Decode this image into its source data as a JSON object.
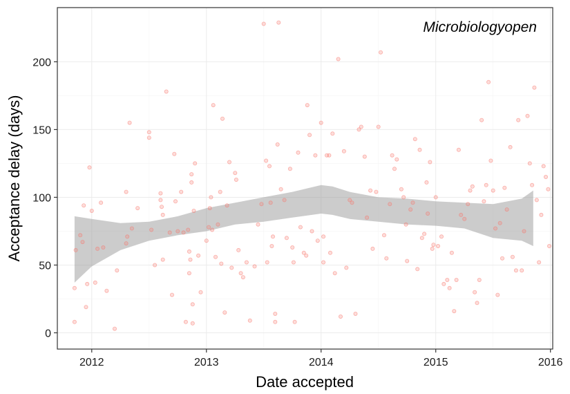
{
  "chart_data": {
    "type": "scatter",
    "title": "",
    "panel_label": "Microbiologyopen",
    "xlabel": "Date accepted",
    "ylabel": "Acceptance delay (days)",
    "x_units": "year",
    "xlim": [
      2011.7,
      2016.02
    ],
    "ylim": [
      -12,
      240
    ],
    "x_ticks": [
      2012,
      2013,
      2014,
      2015,
      2016
    ],
    "x_tick_labels": [
      "2012",
      "2013",
      "2014",
      "2015",
      "2016"
    ],
    "y_ticks": [
      0,
      50,
      100,
      150,
      200
    ],
    "y_tick_labels": [
      "0",
      "50",
      "100",
      "150",
      "200"
    ],
    "grid": true,
    "legend": "none",
    "point_color": "#f8766d",
    "ribbon_color": "#999999",
    "series": [
      {
        "kind": "points",
        "points": [
          [
            2011.85,
            8
          ],
          [
            2011.85,
            33
          ],
          [
            2011.86,
            61
          ],
          [
            2011.9,
            72
          ],
          [
            2011.92,
            67
          ],
          [
            2011.93,
            94
          ],
          [
            2011.95,
            19
          ],
          [
            2011.96,
            36
          ],
          [
            2011.98,
            122
          ],
          [
            2012.0,
            90
          ],
          [
            2012.03,
            37
          ],
          [
            2012.05,
            62
          ],
          [
            2012.08,
            96
          ],
          [
            2012.1,
            63
          ],
          [
            2012.13,
            31
          ],
          [
            2012.2,
            3
          ],
          [
            2012.22,
            46
          ],
          [
            2012.3,
            104
          ],
          [
            2012.3,
            66
          ],
          [
            2012.31,
            71
          ],
          [
            2012.33,
            155
          ],
          [
            2012.35,
            77
          ],
          [
            2012.4,
            92
          ],
          [
            2012.5,
            148
          ],
          [
            2012.5,
            144
          ],
          [
            2012.52,
            76
          ],
          [
            2012.55,
            50
          ],
          [
            2012.6,
            103
          ],
          [
            2012.6,
            98
          ],
          [
            2012.61,
            93
          ],
          [
            2012.62,
            87
          ],
          [
            2012.62,
            54
          ],
          [
            2012.65,
            178
          ],
          [
            2012.68,
            74
          ],
          [
            2012.7,
            28
          ],
          [
            2012.72,
            132
          ],
          [
            2012.73,
            97
          ],
          [
            2012.75,
            75
          ],
          [
            2012.78,
            104
          ],
          [
            2012.8,
            74
          ],
          [
            2012.82,
            8
          ],
          [
            2012.84,
            76
          ],
          [
            2012.85,
            44
          ],
          [
            2012.85,
            60
          ],
          [
            2012.86,
            54
          ],
          [
            2012.87,
            111
          ],
          [
            2012.87,
            117
          ],
          [
            2012.88,
            21
          ],
          [
            2012.88,
            7
          ],
          [
            2012.89,
            90
          ],
          [
            2012.9,
            125
          ],
          [
            2012.93,
            57
          ],
          [
            2012.95,
            30
          ],
          [
            2013.0,
            68
          ],
          [
            2013.02,
            78
          ],
          [
            2013.03,
            92
          ],
          [
            2013.04,
            100
          ],
          [
            2013.05,
            76
          ],
          [
            2013.06,
            168
          ],
          [
            2013.08,
            56
          ],
          [
            2013.1,
            80
          ],
          [
            2013.12,
            104
          ],
          [
            2013.13,
            51
          ],
          [
            2013.14,
            158
          ],
          [
            2013.16,
            15
          ],
          [
            2013.18,
            94
          ],
          [
            2013.2,
            126
          ],
          [
            2013.22,
            48
          ],
          [
            2013.25,
            118
          ],
          [
            2013.26,
            113
          ],
          [
            2013.28,
            61
          ],
          [
            2013.3,
            44
          ],
          [
            2013.32,
            41
          ],
          [
            2013.35,
            52
          ],
          [
            2013.38,
            9
          ],
          [
            2013.42,
            49
          ],
          [
            2013.45,
            80
          ],
          [
            2013.48,
            95
          ],
          [
            2013.5,
            228
          ],
          [
            2013.52,
            127
          ],
          [
            2013.53,
            52
          ],
          [
            2013.55,
            123
          ],
          [
            2013.56,
            96
          ],
          [
            2013.57,
            64
          ],
          [
            2013.58,
            71
          ],
          [
            2013.6,
            8
          ],
          [
            2013.6,
            14
          ],
          [
            2013.62,
            139
          ],
          [
            2013.63,
            229
          ],
          [
            2013.65,
            106
          ],
          [
            2013.68,
            98
          ],
          [
            2013.7,
            70
          ],
          [
            2013.73,
            121
          ],
          [
            2013.75,
            63
          ],
          [
            2013.76,
            52
          ],
          [
            2013.77,
            8
          ],
          [
            2013.8,
            133
          ],
          [
            2013.82,
            78
          ],
          [
            2013.85,
            59
          ],
          [
            2013.87,
            57
          ],
          [
            2013.88,
            168
          ],
          [
            2013.9,
            146
          ],
          [
            2013.92,
            75
          ],
          [
            2013.95,
            131
          ],
          [
            2013.97,
            68
          ],
          [
            2014.0,
            155
          ],
          [
            2014.02,
            71
          ],
          [
            2014.02,
            52
          ],
          [
            2014.05,
            131
          ],
          [
            2014.07,
            131
          ],
          [
            2014.08,
            59
          ],
          [
            2014.1,
            147
          ],
          [
            2014.12,
            44
          ],
          [
            2014.15,
            202
          ],
          [
            2014.17,
            12
          ],
          [
            2014.2,
            134
          ],
          [
            2014.22,
            48
          ],
          [
            2014.25,
            98
          ],
          [
            2014.27,
            96
          ],
          [
            2014.3,
            14
          ],
          [
            2014.33,
            150
          ],
          [
            2014.35,
            152
          ],
          [
            2014.38,
            130
          ],
          [
            2014.4,
            85
          ],
          [
            2014.43,
            105
          ],
          [
            2014.45,
            62
          ],
          [
            2014.48,
            104
          ],
          [
            2014.5,
            152
          ],
          [
            2014.52,
            207
          ],
          [
            2014.55,
            72
          ],
          [
            2014.57,
            55
          ],
          [
            2014.6,
            95
          ],
          [
            2014.62,
            131
          ],
          [
            2014.64,
            121
          ],
          [
            2014.66,
            128
          ],
          [
            2014.7,
            106
          ],
          [
            2014.72,
            100
          ],
          [
            2014.74,
            80
          ],
          [
            2014.75,
            53
          ],
          [
            2014.78,
            91
          ],
          [
            2014.8,
            96
          ],
          [
            2014.82,
            143
          ],
          [
            2014.84,
            47
          ],
          [
            2014.86,
            135
          ],
          [
            2014.88,
            70
          ],
          [
            2014.9,
            73
          ],
          [
            2014.92,
            111
          ],
          [
            2014.93,
            88
          ],
          [
            2014.95,
            126
          ],
          [
            2014.97,
            62
          ],
          [
            2014.98,
            65
          ],
          [
            2015.0,
            100
          ],
          [
            2015.02,
            64
          ],
          [
            2015.05,
            71
          ],
          [
            2015.07,
            36
          ],
          [
            2015.1,
            39
          ],
          [
            2015.12,
            33
          ],
          [
            2015.14,
            59
          ],
          [
            2015.16,
            16
          ],
          [
            2015.18,
            39
          ],
          [
            2015.2,
            135
          ],
          [
            2015.22,
            87
          ],
          [
            2015.25,
            84
          ],
          [
            2015.28,
            95
          ],
          [
            2015.3,
            105
          ],
          [
            2015.32,
            108
          ],
          [
            2015.34,
            30
          ],
          [
            2015.36,
            22
          ],
          [
            2015.38,
            39
          ],
          [
            2015.4,
            157
          ],
          [
            2015.42,
            97
          ],
          [
            2015.44,
            109
          ],
          [
            2015.46,
            185
          ],
          [
            2015.48,
            127
          ],
          [
            2015.5,
            105
          ],
          [
            2015.52,
            77
          ],
          [
            2015.54,
            28
          ],
          [
            2015.56,
            81
          ],
          [
            2015.58,
            55
          ],
          [
            2015.6,
            107
          ],
          [
            2015.62,
            91
          ],
          [
            2015.65,
            137
          ],
          [
            2015.67,
            56
          ],
          [
            2015.7,
            46
          ],
          [
            2015.72,
            157
          ],
          [
            2015.75,
            46
          ],
          [
            2015.77,
            75
          ],
          [
            2015.8,
            160
          ],
          [
            2015.82,
            125
          ],
          [
            2015.84,
            109
          ],
          [
            2015.86,
            181
          ],
          [
            2015.88,
            98
          ],
          [
            2015.9,
            52
          ],
          [
            2015.92,
            87
          ],
          [
            2015.94,
            123
          ],
          [
            2015.96,
            115
          ],
          [
            2015.98,
            106
          ],
          [
            2015.99,
            64
          ]
        ]
      },
      {
        "kind": "smooth_confidence_band",
        "x": [
          2011.85,
          2012.0,
          2012.25,
          2012.5,
          2012.75,
          2013.0,
          2013.25,
          2013.5,
          2013.75,
          2014.0,
          2014.1,
          2014.25,
          2014.5,
          2014.75,
          2015.0,
          2015.25,
          2015.5,
          2015.75,
          2015.85
        ],
        "upper": [
          86,
          84,
          81,
          82,
          86,
          92,
          96,
          100,
          104,
          109,
          108,
          104,
          100,
          99,
          97,
          96,
          95,
          99,
          105
        ],
        "lower": [
          37,
          49,
          61,
          68,
          72,
          75,
          80,
          82,
          85,
          88,
          87,
          84,
          82,
          80,
          79,
          77,
          70,
          68,
          64
        ]
      }
    ]
  }
}
